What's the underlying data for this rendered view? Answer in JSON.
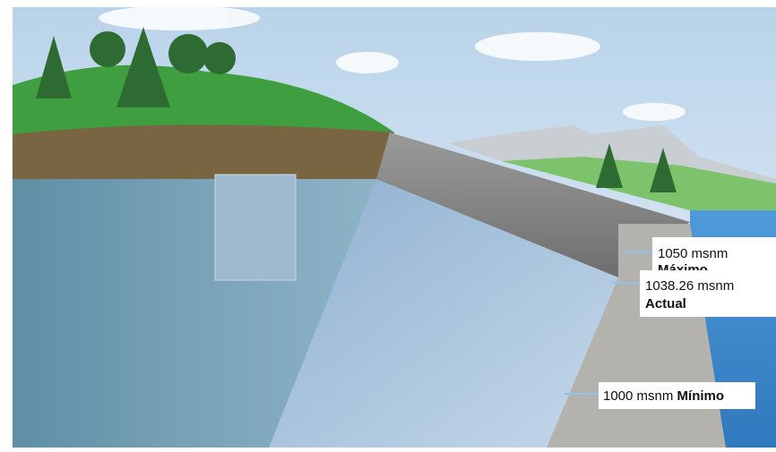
{
  "levels": [
    {
      "value": "1050 msnm",
      "label": "Máximo"
    },
    {
      "value": "1038.26 msnm",
      "label": "Actual"
    },
    {
      "value": "1000 msnm",
      "label": "Mínimo"
    }
  ]
}
